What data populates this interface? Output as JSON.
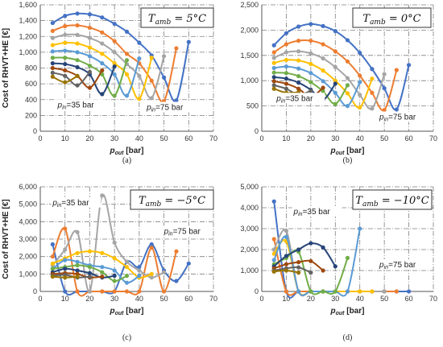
{
  "chart_data": [
    {
      "type": "line",
      "panel_label": "(a)",
      "title": "T_amb = 5°C",
      "title_main": "T",
      "title_sub": "amb",
      "title_rest": " = 5°C",
      "xlabel_main": "p",
      "xlabel_sub": "out",
      "xlabel_rest": " [bar]",
      "ylabel": "Cost of RHVT+HE [€]",
      "xlim": [
        0,
        70
      ],
      "ylim": [
        0,
        1600
      ],
      "xticks": [
        "0",
        "10",
        "20",
        "30",
        "40",
        "50",
        "60",
        "70"
      ],
      "yticks": [
        "0",
        "200",
        "400",
        "600",
        "800",
        "1,000",
        "1,200",
        "1,400",
        "1,600"
      ],
      "annotations": [
        {
          "pre": "p",
          "sub": "in",
          "post": "=35 bar",
          "x": 7,
          "y": 300
        },
        {
          "pre": "p",
          "sub": "in",
          "post": "=75 bar",
          "x": 43,
          "y": 270
        }
      ],
      "series": [
        {
          "color": "#4472c4",
          "x": [
            5,
            10,
            15,
            20,
            25,
            30,
            35,
            40,
            45,
            50,
            55,
            60
          ],
          "y": [
            1370,
            1460,
            1490,
            1480,
            1440,
            1360,
            1260,
            1120,
            960,
            680,
            390,
            1130
          ]
        },
        {
          "color": "#ed7d31",
          "x": [
            5,
            10,
            15,
            20,
            25,
            30,
            35,
            40,
            45,
            50,
            55
          ],
          "y": [
            1270,
            1330,
            1340,
            1310,
            1250,
            1140,
            980,
            860,
            640,
            380,
            1050
          ]
        },
        {
          "color": "#a5a5a5",
          "x": [
            5,
            10,
            15,
            20,
            25,
            30,
            35,
            40,
            45,
            50
          ],
          "y": [
            1180,
            1220,
            1220,
            1180,
            1110,
            1000,
            850,
            700,
            420,
            950
          ]
        },
        {
          "color": "#ffc000",
          "x": [
            5,
            10,
            15,
            20,
            25,
            30,
            35,
            40,
            45
          ],
          "y": [
            1090,
            1120,
            1110,
            1060,
            980,
            860,
            720,
            410,
            930
          ]
        },
        {
          "color": "#5b9bd5",
          "x": [
            5,
            10,
            15,
            20,
            25,
            30,
            35,
            40
          ],
          "y": [
            1010,
            1020,
            1000,
            950,
            860,
            720,
            450,
            920
          ]
        },
        {
          "color": "#70ad47",
          "x": [
            5,
            10,
            15,
            20,
            25,
            30,
            35
          ],
          "y": [
            930,
            930,
            900,
            830,
            720,
            450,
            900
          ]
        },
        {
          "color": "#264478",
          "x": [
            5,
            10,
            15,
            20,
            25,
            30
          ],
          "y": [
            860,
            850,
            810,
            720,
            470,
            820
          ]
        },
        {
          "color": "#9e480e",
          "x": [
            5,
            10,
            15,
            20,
            25
          ],
          "y": [
            800,
            770,
            700,
            550,
            770
          ]
        },
        {
          "color": "#636363",
          "x": [
            5,
            10,
            15,
            20
          ],
          "y": [
            740,
            700,
            580,
            750
          ]
        },
        {
          "color": "#997300",
          "x": [
            5,
            10,
            15
          ],
          "y": [
            690,
            620,
            700
          ]
        }
      ]
    },
    {
      "type": "line",
      "panel_label": "(b)",
      "title": "T_amb = 0°C",
      "title_main": "T",
      "title_sub": "amb",
      "title_rest": " = 0°C",
      "xlabel_main": "p",
      "xlabel_sub": "out",
      "xlabel_rest": " [bar]",
      "ylabel": "",
      "xlim": [
        0,
        70
      ],
      "ylim": [
        0,
        2500
      ],
      "xticks": [
        "0",
        "10",
        "20",
        "30",
        "40",
        "50",
        "60",
        "70"
      ],
      "yticks": [
        "0",
        "500",
        "1,000",
        "1,500",
        "2,000",
        "2,500"
      ],
      "annotations": [
        {
          "pre": "p",
          "sub": "in",
          "post": "=35 bar",
          "x": 6,
          "y": 600
        },
        {
          "pre": "p",
          "sub": "in",
          "post": "=75 bar",
          "x": 48,
          "y": 230
        }
      ],
      "series": [
        {
          "color": "#4472c4",
          "x": [
            5,
            10,
            15,
            20,
            25,
            30,
            35,
            40,
            45,
            50,
            55,
            60
          ],
          "y": [
            1700,
            1940,
            2070,
            2120,
            2080,
            1980,
            1800,
            1550,
            1230,
            850,
            430,
            1310
          ]
        },
        {
          "color": "#ed7d31",
          "x": [
            5,
            10,
            15,
            20,
            25,
            30,
            35,
            40,
            45,
            50,
            55
          ],
          "y": [
            1560,
            1720,
            1790,
            1790,
            1720,
            1580,
            1380,
            1100,
            760,
            420,
            1210
          ]
        },
        {
          "color": "#a5a5a5",
          "x": [
            5,
            10,
            15,
            20,
            25,
            30,
            35,
            40,
            45,
            50
          ],
          "y": [
            1450,
            1560,
            1580,
            1540,
            1440,
            1270,
            1050,
            720,
            450,
            1130
          ]
        },
        {
          "color": "#ffc000",
          "x": [
            5,
            10,
            15,
            20,
            25,
            30,
            35,
            40,
            45
          ],
          "y": [
            1350,
            1410,
            1400,
            1330,
            1200,
            1000,
            750,
            470,
            1040
          ]
        },
        {
          "color": "#5b9bd5",
          "x": [
            5,
            10,
            15,
            20,
            25,
            30,
            35,
            40
          ],
          "y": [
            1250,
            1280,
            1240,
            1150,
            990,
            760,
            500,
            970
          ]
        },
        {
          "color": "#70ad47",
          "x": [
            5,
            10,
            15,
            20,
            25,
            30,
            35
          ],
          "y": [
            1160,
            1150,
            1090,
            970,
            790,
            540,
            910
          ]
        },
        {
          "color": "#264478",
          "x": [
            5,
            10,
            15,
            20,
            25,
            30
          ],
          "y": [
            1070,
            1040,
            960,
            820,
            620,
            940
          ]
        },
        {
          "color": "#9e480e",
          "x": [
            5,
            10,
            15,
            20,
            25
          ],
          "y": [
            990,
            940,
            840,
            680,
            860
          ]
        },
        {
          "color": "#636363",
          "x": [
            5,
            10,
            15,
            20
          ],
          "y": [
            910,
            840,
            720,
            800
          ]
        },
        {
          "color": "#997300",
          "x": [
            5,
            10,
            15
          ],
          "y": [
            840,
            760,
            770
          ]
        }
      ]
    },
    {
      "type": "line",
      "panel_label": "(c)",
      "title": "T_amb = −5°C",
      "title_main": "T",
      "title_sub": "amb",
      "title_rest": " = −5°C",
      "xlabel_main": "p",
      "xlabel_sub": "out",
      "xlabel_rest": " [bar]",
      "ylabel": "Cost of RHVT+HE [€]",
      "xlim": [
        0,
        70
      ],
      "ylim": [
        0,
        6000
      ],
      "xticks": [
        "0",
        "10",
        "20",
        "30",
        "40",
        "50",
        "60",
        "70"
      ],
      "yticks": [
        "0",
        "1,000",
        "2,000",
        "3,000",
        "4,000",
        "5,000",
        "6,000"
      ],
      "annotations": [
        {
          "pre": "p",
          "sub": "in",
          "post": "=35 bar",
          "x": 5,
          "y": 4950
        },
        {
          "pre": "p",
          "sub": "in",
          "post": "=75 bar",
          "x": 50,
          "y": 3300
        }
      ],
      "series": [
        {
          "color": "#4472c4",
          "x": [
            5,
            10,
            15,
            20,
            25,
            30,
            35,
            40,
            45,
            50,
            55,
            60
          ],
          "y": [
            2700,
            0,
            0,
            0,
            0,
            0,
            1700,
            1400,
            2700,
            1200,
            600,
            1600
          ]
        },
        {
          "color": "#ed7d31",
          "x": [
            5,
            10,
            15,
            20,
            25,
            30,
            35,
            40,
            45,
            50,
            55
          ],
          "y": [
            2000,
            3600,
            0,
            0,
            0,
            0,
            0,
            0,
            2500,
            0,
            2300
          ]
        },
        {
          "color": "#a5a5a5",
          "x": [
            5,
            10,
            15,
            20,
            25,
            30,
            35,
            40,
            45,
            50
          ],
          "y": [
            1500,
            2400,
            3400,
            0,
            5500,
            2800,
            1700,
            1200,
            800,
            1100
          ]
        },
        {
          "color": "#ffc000",
          "x": [
            5,
            10,
            15,
            20,
            25,
            30,
            35,
            40,
            45
          ],
          "y": [
            1600,
            1900,
            2200,
            2300,
            2200,
            1900,
            1400,
            800,
            1000
          ]
        },
        {
          "color": "#5b9bd5",
          "x": [
            5,
            10,
            15,
            20,
            25,
            30,
            35,
            40
          ],
          "y": [
            1300,
            1800,
            1700,
            1500,
            1400,
            1200,
            500,
            900
          ]
        },
        {
          "color": "#70ad47",
          "x": [
            5,
            10,
            15,
            20,
            25,
            30,
            35
          ],
          "y": [
            1300,
            1400,
            1500,
            1400,
            1100,
            600,
            900
          ]
        },
        {
          "color": "#264478",
          "x": [
            5,
            10,
            15,
            20,
            25,
            30
          ],
          "y": [
            1100,
            1300,
            1200,
            1050,
            800,
            900
          ]
        },
        {
          "color": "#9e480e",
          "x": [
            5,
            10,
            15,
            20,
            25
          ],
          "y": [
            1000,
            1050,
            1000,
            800,
            850
          ]
        },
        {
          "color": "#636363",
          "x": [
            5,
            10,
            15,
            20
          ],
          "y": [
            900,
            950,
            800,
            850
          ]
        },
        {
          "color": "#997300",
          "x": [
            5,
            10,
            15
          ],
          "y": [
            850,
            800,
            850
          ]
        }
      ]
    },
    {
      "type": "line",
      "panel_label": "(d)",
      "title": "T_amb = −10°C",
      "title_main": "T",
      "title_sub": "amb",
      "title_rest": " = −10°C",
      "xlabel_main": "p",
      "xlabel_sub": "out",
      "xlabel_rest": " [bar]",
      "ylabel": "",
      "xlim": [
        0,
        70
      ],
      "ylim": [
        0,
        5000
      ],
      "xticks": [
        "0",
        "10",
        "20",
        "30",
        "40",
        "50",
        "60",
        "70"
      ],
      "yticks": [
        "0",
        "1,000",
        "2,000",
        "3,000",
        "4,000",
        "5,000"
      ],
      "annotations": [
        {
          "pre": "p",
          "sub": "in",
          "post": "=35 bar",
          "x": 13,
          "y": 3700
        },
        {
          "pre": "p",
          "sub": "in",
          "post": "=75 bar",
          "x": 48,
          "y": 1150
        }
      ],
      "series": [
        {
          "color": "#4472c4",
          "x": [
            5,
            10,
            15,
            20,
            25,
            30,
            35,
            40,
            45,
            50,
            55,
            60
          ],
          "y": [
            4300,
            0,
            0,
            0,
            0,
            0,
            0,
            0,
            0,
            0,
            0,
            0
          ]
        },
        {
          "color": "#ed7d31",
          "x": [
            5,
            10,
            15,
            20,
            25,
            30,
            35,
            40,
            45,
            50,
            55
          ],
          "y": [
            2500,
            0,
            0,
            0,
            0,
            0,
            0,
            0,
            0,
            0,
            0
          ]
        },
        {
          "color": "#a5a5a5",
          "x": [
            5,
            10,
            15,
            20,
            25,
            30,
            35,
            40,
            45,
            50
          ],
          "y": [
            2000,
            2900,
            0,
            0,
            0,
            0,
            0,
            0,
            0,
            0
          ]
        },
        {
          "color": "#ffc000",
          "x": [
            5,
            10,
            15,
            20,
            25,
            30,
            35,
            40,
            45
          ],
          "y": [
            1800,
            2400,
            0,
            0,
            0,
            0,
            0,
            0,
            0
          ]
        },
        {
          "color": "#5b9bd5",
          "x": [
            5,
            10,
            15,
            20,
            25,
            30,
            35,
            40
          ],
          "y": [
            1500,
            2600,
            0,
            0,
            0,
            0,
            0,
            3000
          ]
        },
        {
          "color": "#70ad47",
          "x": [
            5,
            10,
            15,
            20,
            25,
            30,
            35
          ],
          "y": [
            1300,
            1600,
            1900,
            0,
            0,
            0,
            1600
          ]
        },
        {
          "color": "#264478",
          "x": [
            5,
            10,
            15,
            20,
            25,
            30
          ],
          "y": [
            1200,
            1700,
            2000,
            2300,
            2100,
            1200
          ]
        },
        {
          "color": "#9e480e",
          "x": [
            5,
            10,
            15,
            20,
            25
          ],
          "y": [
            1100,
            1300,
            1400,
            1450,
            1000
          ]
        },
        {
          "color": "#636363",
          "x": [
            5,
            10,
            15,
            20
          ],
          "y": [
            1000,
            1100,
            1150,
            900
          ]
        },
        {
          "color": "#997300",
          "x": [
            5,
            10,
            15
          ],
          "y": [
            950,
            1000,
            900
          ]
        }
      ]
    }
  ]
}
